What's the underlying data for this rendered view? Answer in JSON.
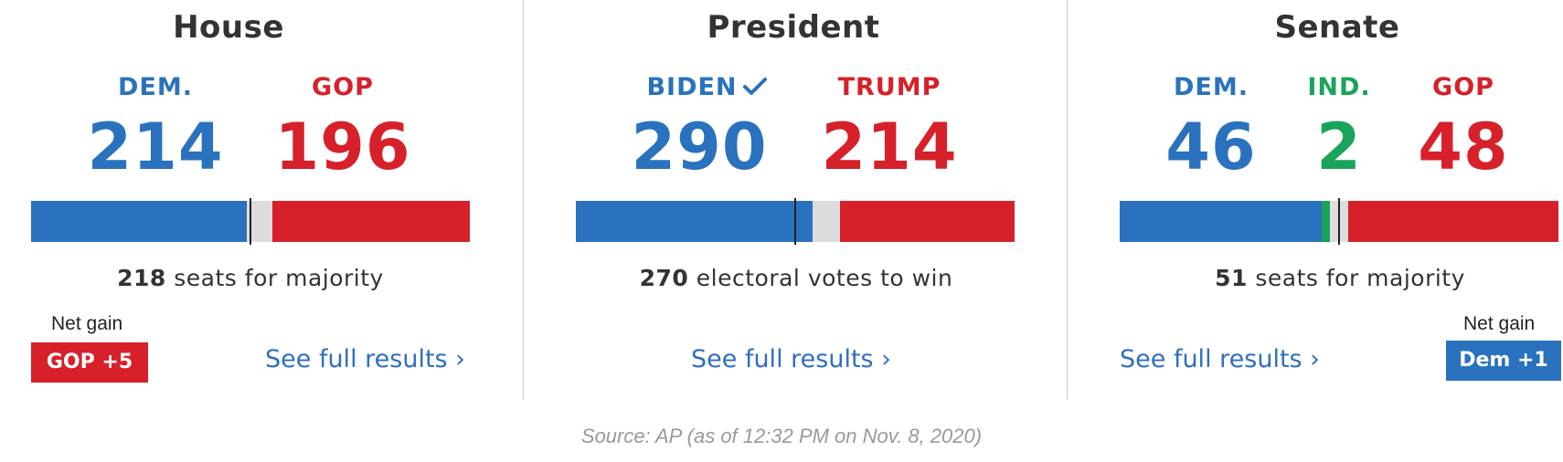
{
  "colors": {
    "dem": "#2a72bd",
    "gop": "#d6202a",
    "ind": "#1aa35a",
    "neutral": "#dddddd",
    "link": "#2f6fbf",
    "badge_gop": "#d6202a",
    "badge_dem": "#2a72bd"
  },
  "house": {
    "title": "House",
    "dem_label": "DEM.",
    "dem_count": "214",
    "gop_label": "GOP",
    "gop_count": "196",
    "majority_num": "218",
    "majority_text": "seats for majority",
    "total_seats": 435,
    "dem_seats": 214,
    "gop_seats": 196,
    "net_gain_label": "Net gain",
    "net_gain_value": "GOP +5",
    "link_text": "See full results ›"
  },
  "president": {
    "title": "President",
    "biden_label": "BIDEN",
    "biden_icon": "checkmark-icon",
    "biden_count": "290",
    "trump_label": "TRUMP",
    "trump_count": "214",
    "win_num": "270",
    "win_text": "electoral votes to win",
    "total_votes": 538,
    "biden_votes": 290,
    "trump_votes": 214,
    "link_text": "See full results ›"
  },
  "senate": {
    "title": "Senate",
    "dem_label": "DEM.",
    "dem_count": "46",
    "ind_label": "IND.",
    "ind_count": "2",
    "gop_label": "GOP",
    "gop_count": "48",
    "majority_num": "51",
    "majority_text": "seats for majority",
    "total_seats": 100,
    "dem_seats": 46,
    "ind_seats": 2,
    "gop_seats": 48,
    "net_gain_label": "Net gain",
    "net_gain_value": "Dem +1",
    "link_text": "See full results ›"
  },
  "source": "Source: AP (as of 12:32 PM on Nov. 8, 2020)"
}
